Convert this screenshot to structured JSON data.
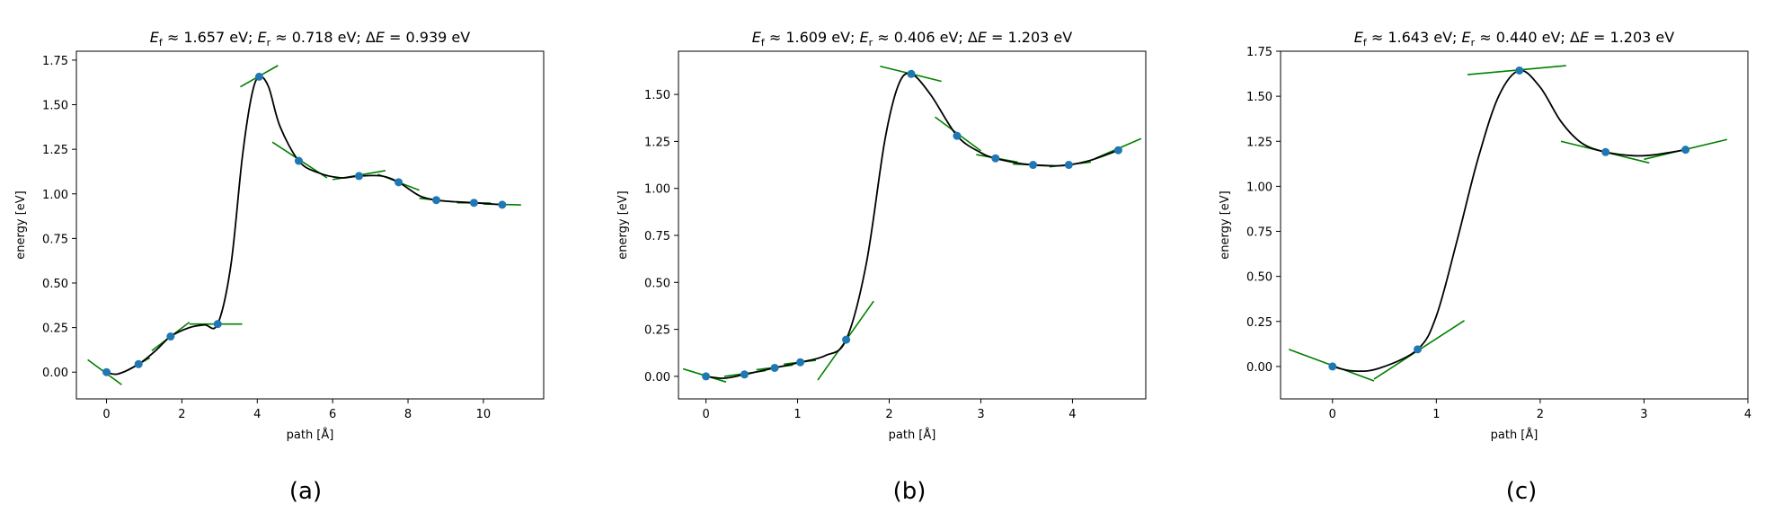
{
  "chart_data": [
    {
      "type": "line",
      "panel_label": "(a)",
      "title": "E_f ≈ 1.657 eV; E_r ≈ 0.718 eV; ΔE = 0.939 eV",
      "title_parts": {
        "ef_sym": "E",
        "ef_sub": "f",
        "ef_rest": " ≈ 1.657 eV; ",
        "er_sym": "E",
        "er_sub": "r",
        "er_rest": " ≈ 0.718 eV; Δ",
        "de_sym": "E",
        "de_rest": " = 0.939 eV"
      },
      "xlabel": "path [Å]",
      "ylabel": "energy [eV]",
      "xlim": [
        -0.8,
        11.6
      ],
      "ylim": [
        -0.15,
        1.8
      ],
      "xticks": [
        0,
        2,
        4,
        6,
        8,
        10
      ],
      "yticks": [
        0.0,
        0.25,
        0.5,
        0.75,
        1.0,
        1.25,
        1.5,
        1.75
      ],
      "grid": false,
      "images": {
        "x": [
          0,
          0.85,
          1.7,
          2.95,
          4.05,
          5.1,
          6.7,
          7.75,
          8.75,
          9.75,
          10.5
        ],
        "y": [
          0.0,
          0.045,
          0.2,
          0.27,
          1.657,
          1.185,
          1.1,
          1.065,
          0.965,
          0.95,
          0.939
        ]
      },
      "fit": {
        "x": [
          0,
          0.3,
          0.85,
          1.3,
          1.7,
          2.2,
          2.6,
          2.95,
          3.3,
          3.6,
          3.85,
          4.05,
          4.3,
          4.6,
          5.1,
          5.6,
          6.2,
          6.7,
          7.3,
          7.75,
          8.3,
          8.75,
          9.3,
          9.75,
          10.5
        ],
        "y": [
          0.0,
          -0.01,
          0.045,
          0.12,
          0.2,
          0.25,
          0.265,
          0.27,
          0.6,
          1.2,
          1.55,
          1.657,
          1.6,
          1.38,
          1.185,
          1.12,
          1.09,
          1.1,
          1.1,
          1.065,
          0.99,
          0.965,
          0.955,
          0.95,
          0.939
        ]
      },
      "tangents": [
        {
          "x": [
            -0.5,
            0.4
          ],
          "y": [
            0.07,
            -0.07
          ]
        },
        {
          "x": [
            0.55,
            1.15
          ],
          "y": [
            0.01,
            0.08
          ]
        },
        {
          "x": [
            1.2,
            2.2
          ],
          "y": [
            0.12,
            0.28
          ]
        },
        {
          "x": [
            2.2,
            3.6
          ],
          "y": [
            0.27,
            0.27
          ]
        },
        {
          "x": [
            3.55,
            4.55
          ],
          "y": [
            1.6,
            1.72
          ]
        },
        {
          "x": [
            4.4,
            5.85
          ],
          "y": [
            1.29,
            1.09
          ]
        },
        {
          "x": [
            6.0,
            7.4
          ],
          "y": [
            1.08,
            1.13
          ]
        },
        {
          "x": [
            7.2,
            8.3
          ],
          "y": [
            1.11,
            1.02
          ]
        },
        {
          "x": [
            8.3,
            9.2
          ],
          "y": [
            0.975,
            0.955
          ]
        },
        {
          "x": [
            9.3,
            10.2
          ],
          "y": [
            0.95,
            0.948
          ]
        },
        {
          "x": [
            10.0,
            11.0
          ],
          "y": [
            0.943,
            0.938
          ]
        }
      ]
    },
    {
      "type": "line",
      "panel_label": "(b)",
      "title": "E_f ≈ 1.609 eV; E_r ≈ 0.406 eV; ΔE = 1.203 eV",
      "title_parts": {
        "ef_sym": "E",
        "ef_sub": "f",
        "ef_rest": " ≈ 1.609 eV; ",
        "er_sym": "E",
        "er_sub": "r",
        "er_rest": " ≈ 0.406 eV; Δ",
        "de_sym": "E",
        "de_rest": " = 1.203 eV"
      },
      "xlabel": "path [Å]",
      "ylabel": "energy [eV]",
      "xlim": [
        -0.3,
        4.8
      ],
      "ylim": [
        -0.12,
        1.73
      ],
      "xticks": [
        0,
        1,
        2,
        3,
        4
      ],
      "yticks": [
        0.0,
        0.25,
        0.5,
        0.75,
        1.0,
        1.25,
        1.5
      ],
      "grid": false,
      "images": {
        "x": [
          0,
          0.42,
          0.75,
          1.03,
          1.53,
          2.24,
          2.74,
          3.16,
          3.57,
          3.96,
          4.5
        ],
        "y": [
          0.0,
          0.01,
          0.045,
          0.075,
          0.195,
          1.609,
          1.28,
          1.16,
          1.125,
          1.125,
          1.203
        ]
      },
      "fit": {
        "x": [
          0,
          0.2,
          0.42,
          0.75,
          1.03,
          1.3,
          1.53,
          1.75,
          1.95,
          2.1,
          2.24,
          2.45,
          2.74,
          3.0,
          3.16,
          3.4,
          3.57,
          3.8,
          3.96,
          4.2,
          4.5
        ],
        "y": [
          0.0,
          -0.01,
          0.01,
          0.045,
          0.075,
          0.11,
          0.195,
          0.6,
          1.25,
          1.55,
          1.609,
          1.5,
          1.28,
          1.19,
          1.16,
          1.135,
          1.125,
          1.12,
          1.125,
          1.15,
          1.203
        ]
      },
      "tangents": [
        {
          "x": [
            -0.25,
            0.22
          ],
          "y": [
            0.04,
            -0.03
          ]
        },
        {
          "x": [
            0.2,
            0.65
          ],
          "y": [
            0.0,
            0.03
          ]
        },
        {
          "x": [
            0.55,
            0.95
          ],
          "y": [
            0.035,
            0.06
          ]
        },
        {
          "x": [
            0.85,
            1.2
          ],
          "y": [
            0.065,
            0.085
          ]
        },
        {
          "x": [
            1.22,
            1.83
          ],
          "y": [
            -0.02,
            0.4
          ]
        },
        {
          "x": [
            1.9,
            2.57
          ],
          "y": [
            1.65,
            1.57
          ]
        },
        {
          "x": [
            2.5,
            3.0
          ],
          "y": [
            1.38,
            1.2
          ]
        },
        {
          "x": [
            2.95,
            3.4
          ],
          "y": [
            1.18,
            1.14
          ]
        },
        {
          "x": [
            3.35,
            3.8
          ],
          "y": [
            1.13,
            1.12
          ]
        },
        {
          "x": [
            3.75,
            4.2
          ],
          "y": [
            1.115,
            1.14
          ]
        },
        {
          "x": [
            4.25,
            4.75
          ],
          "y": [
            1.16,
            1.265
          ]
        }
      ]
    },
    {
      "type": "line",
      "panel_label": "(c)",
      "title": "E_f ≈ 1.643 eV; E_r ≈ 0.440 eV; ΔE = 1.203 eV",
      "title_parts": {
        "ef_sym": "E",
        "ef_sub": "f",
        "ef_rest": " ≈ 1.643 eV; ",
        "er_sym": "E",
        "er_sub": "r",
        "er_rest": " ≈ 0.440 eV; Δ",
        "de_sym": "E",
        "de_rest": " = 1.203 eV"
      },
      "xlabel": "path [Å]",
      "ylabel": "energy [eV]",
      "xlim": [
        -0.5,
        4.0
      ],
      "ylim": [
        -0.18,
        1.75
      ],
      "xticks": [
        0,
        1,
        2,
        3,
        4
      ],
      "yticks": [
        0.0,
        0.25,
        0.5,
        0.75,
        1.0,
        1.25,
        1.5,
        1.75
      ],
      "grid": false,
      "images": {
        "x": [
          0,
          0.82,
          1.8,
          2.63,
          3.4
        ],
        "y": [
          0.0,
          0.095,
          1.643,
          1.19,
          1.203
        ]
      },
      "fit": {
        "x": [
          0,
          0.2,
          0.45,
          0.82,
          1.0,
          1.2,
          1.4,
          1.6,
          1.8,
          2.0,
          2.2,
          2.4,
          2.63,
          2.9,
          3.1,
          3.4
        ],
        "y": [
          0.0,
          -0.025,
          -0.01,
          0.095,
          0.28,
          0.7,
          1.15,
          1.5,
          1.643,
          1.55,
          1.36,
          1.24,
          1.19,
          1.17,
          1.175,
          1.203
        ]
      },
      "tangents": [
        {
          "x": [
            -0.42,
            0.4
          ],
          "y": [
            0.095,
            -0.08
          ]
        },
        {
          "x": [
            0.4,
            1.27
          ],
          "y": [
            -0.07,
            0.255
          ]
        },
        {
          "x": [
            1.3,
            2.25
          ],
          "y": [
            1.62,
            1.67
          ]
        },
        {
          "x": [
            2.2,
            3.05
          ],
          "y": [
            1.25,
            1.13
          ]
        },
        {
          "x": [
            3.0,
            3.8
          ],
          "y": [
            1.15,
            1.26
          ]
        }
      ]
    }
  ]
}
